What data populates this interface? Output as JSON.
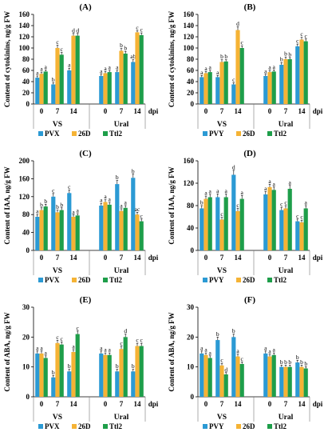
{
  "chart_data": [
    {
      "type": "bar",
      "panel_label": "(A)",
      "ylabel": "Content of cytokinins, ng/g FW",
      "xlabel": "dpi",
      "ylim": [
        0,
        160
      ],
      "yticks": [
        0,
        20,
        40,
        60,
        80,
        100,
        120,
        140,
        160
      ],
      "grid": false,
      "legend": "bottom",
      "groups": [
        {
          "name": "VS",
          "categories": [
            "0",
            "7",
            "14"
          ]
        },
        {
          "name": "Ural",
          "categories": [
            "0",
            "7",
            "14"
          ]
        }
      ],
      "series": [
        {
          "name": "PVX",
          "color": "#2b9ad4",
          "values": [
            47,
            35,
            60,
            50,
            57,
            75
          ],
          "errors": [
            3,
            3,
            4,
            3,
            3,
            4
          ],
          "letters": [
            "a",
            "b",
            "a",
            "a",
            "a",
            "ab"
          ]
        },
        {
          "name": "26D",
          "color": "#f5b335",
          "values": [
            54,
            100,
            122,
            55,
            95,
            128
          ],
          "errors": [
            3,
            5,
            4,
            3,
            4,
            3
          ],
          "letters": [
            "a",
            "c",
            "d",
            "a",
            "b",
            "c"
          ]
        },
        {
          "name": "Ttl2",
          "color": "#1e9e4a",
          "values": [
            58,
            88,
            122,
            57,
            90,
            123
          ],
          "errors": [
            3,
            4,
            4,
            3,
            4,
            4
          ],
          "letters": [
            "a",
            "c",
            "d",
            "a",
            "b",
            "c"
          ]
        }
      ]
    },
    {
      "type": "bar",
      "panel_label": "(B)",
      "ylabel": "Content of cytokinins, ng/g FW",
      "xlabel": "dpi",
      "ylim": [
        0,
        160
      ],
      "yticks": [
        0,
        20,
        40,
        60,
        80,
        100,
        120,
        140,
        160
      ],
      "grid": false,
      "legend": "bottom",
      "groups": [
        {
          "name": "VS",
          "categories": [
            "0",
            "7",
            "14"
          ]
        },
        {
          "name": "Ural",
          "categories": [
            "0",
            "7",
            "14"
          ]
        }
      ],
      "series": [
        {
          "name": "PVY",
          "color": "#2b9ad4",
          "values": [
            48,
            48,
            35,
            50,
            70,
            103
          ],
          "errors": [
            3,
            3,
            3,
            3,
            4,
            4
          ],
          "letters": [
            "a",
            "a",
            "c",
            "a",
            "b",
            "c"
          ]
        },
        {
          "name": "26D",
          "color": "#f5b335",
          "values": [
            55,
            75,
            132,
            57,
            80,
            115
          ],
          "errors": [
            3,
            4,
            6,
            3,
            4,
            4
          ],
          "letters": [
            "a",
            "b",
            "d",
            "a",
            "b",
            "c"
          ]
        },
        {
          "name": "Ttl2",
          "color": "#1e9e4a",
          "values": [
            57,
            76,
            100,
            58,
            80,
            112
          ],
          "errors": [
            3,
            3,
            4,
            3,
            3,
            4
          ],
          "letters": [
            "a",
            "b",
            "c",
            "a",
            "b",
            "c"
          ]
        }
      ]
    },
    {
      "type": "bar",
      "panel_label": "(C)",
      "ylabel": "Content of IAA, ng/g FW",
      "xlabel": "dpi",
      "ylim": [
        0,
        200
      ],
      "yticks": [
        0,
        40,
        80,
        120,
        160,
        200
      ],
      "grid": false,
      "legend": "bottom",
      "groups": [
        {
          "name": "VS",
          "categories": [
            "0",
            "7",
            "14"
          ]
        },
        {
          "name": "Ural",
          "categories": [
            "0",
            "7",
            "14"
          ]
        }
      ],
      "series": [
        {
          "name": "PVX",
          "color": "#2b9ad4",
          "values": [
            75,
            120,
            128,
            100,
            148,
            162
          ],
          "errors": [
            5,
            7,
            7,
            5,
            8,
            8
          ],
          "letters": [
            "a",
            "c",
            "c",
            "a",
            "b",
            "b"
          ]
        },
        {
          "name": "26D",
          "color": "#f5b335",
          "values": [
            90,
            85,
            75,
            108,
            88,
            80
          ],
          "errors": [
            5,
            5,
            4,
            5,
            5,
            5
          ],
          "letters": [
            "b",
            "b",
            "a",
            "a",
            "a",
            "ac"
          ]
        },
        {
          "name": "Ttl2",
          "color": "#1e9e4a",
          "values": [
            98,
            90,
            78,
            102,
            95,
            65
          ],
          "errors": [
            5,
            5,
            4,
            5,
            5,
            5
          ],
          "letters": [
            "b",
            "b",
            "a",
            "a",
            "a",
            "c"
          ]
        }
      ]
    },
    {
      "type": "bar",
      "panel_label": "(D)",
      "ylabel": "Content of IAA, ng/g FW",
      "xlabel": "dpi",
      "ylim": [
        0,
        160
      ],
      "yticks": [
        0,
        40,
        80,
        120,
        160
      ],
      "grid": false,
      "legend": "bottom",
      "groups": [
        {
          "name": "VS",
          "categories": [
            "0",
            "7",
            "14"
          ]
        },
        {
          "name": "Ural",
          "categories": [
            "0",
            "7",
            "14"
          ]
        }
      ],
      "series": [
        {
          "name": "PVY",
          "color": "#2b9ad4",
          "values": [
            75,
            95,
            135,
            100,
            72,
            52
          ],
          "errors": [
            5,
            6,
            8,
            5,
            5,
            4
          ],
          "letters": [
            "b",
            "a",
            "d",
            "a",
            "c",
            "c"
          ]
        },
        {
          "name": "26D",
          "color": "#f5b335",
          "values": [
            92,
            55,
            70,
            113,
            75,
            50
          ],
          "errors": [
            5,
            4,
            5,
            5,
            5,
            4
          ],
          "letters": [
            "a",
            "c",
            "c",
            "a",
            "c",
            "c"
          ]
        },
        {
          "name": "Ttl2",
          "color": "#1e9e4a",
          "values": [
            95,
            95,
            92,
            108,
            110,
            75
          ],
          "errors": [
            5,
            6,
            6,
            5,
            6,
            5
          ],
          "letters": [
            "a",
            "a",
            "a",
            "a",
            "a",
            "a"
          ]
        }
      ]
    },
    {
      "type": "bar",
      "panel_label": "(E)",
      "ylabel": "Content of ABA, ng/g FW",
      "xlabel": "dpi",
      "ylim": [
        0,
        30
      ],
      "yticks": [
        0,
        10,
        20,
        30
      ],
      "grid": false,
      "legend": "bottom",
      "groups": [
        {
          "name": "VS",
          "categories": [
            "0",
            "7",
            "14"
          ]
        },
        {
          "name": "Ural",
          "categories": [
            "0",
            "7",
            "14"
          ]
        }
      ],
      "series": [
        {
          "name": "PVX",
          "color": "#2b9ad4",
          "values": [
            14.5,
            6.5,
            8.5,
            14.5,
            8.5,
            8.5
          ],
          "errors": [
            0.8,
            0.6,
            0.7,
            0.8,
            0.7,
            0.7
          ],
          "letters": [
            "a",
            "b",
            "b",
            "a",
            "b",
            "b"
          ]
        },
        {
          "name": "26D",
          "color": "#f5b335",
          "values": [
            14.5,
            18,
            15,
            14,
            16,
            17
          ],
          "errors": [
            0.8,
            0.9,
            0.8,
            0.7,
            0.9,
            0.9
          ],
          "letters": [
            "a",
            "c",
            "a",
            "a",
            "c",
            "c"
          ]
        },
        {
          "name": "Ttl2",
          "color": "#1e9e4a",
          "values": [
            13,
            17.5,
            21,
            14,
            20,
            17
          ],
          "errors": [
            0.7,
            0.9,
            1.0,
            0.7,
            1.0,
            0.9
          ],
          "letters": [
            "a",
            "c",
            "c",
            "a",
            "d",
            "c"
          ]
        }
      ]
    },
    {
      "type": "bar",
      "panel_label": "(F)",
      "ylabel": "Content of ABA, ng/g FW",
      "xlabel": "dpi",
      "ylim": [
        0,
        30
      ],
      "yticks": [
        0,
        10,
        20,
        30
      ],
      "grid": false,
      "legend": "bottom",
      "groups": [
        {
          "name": "VS",
          "categories": [
            "0",
            "7",
            "14"
          ]
        },
        {
          "name": "Ural",
          "categories": [
            "0",
            "7",
            "14"
          ]
        }
      ],
      "series": [
        {
          "name": "PVY",
          "color": "#2b9ad4",
          "values": [
            14.5,
            19,
            20,
            14.5,
            10,
            11.5
          ],
          "errors": [
            0.8,
            1.0,
            1.0,
            0.8,
            0.6,
            0.7
          ],
          "letters": [
            "a",
            "b",
            "b",
            "a",
            "b",
            "b"
          ]
        },
        {
          "name": "26D",
          "color": "#f5b335",
          "values": [
            14,
            10.5,
            13.5,
            13.5,
            10,
            10
          ],
          "errors": [
            0.7,
            0.7,
            0.8,
            0.7,
            0.6,
            0.6
          ],
          "letters": [
            "a",
            "c",
            "a",
            "a",
            "b",
            "b"
          ]
        },
        {
          "name": "Ttl2",
          "color": "#1e9e4a",
          "values": [
            13,
            7.5,
            11,
            14,
            10,
            9.5
          ],
          "errors": [
            0.7,
            0.6,
            0.7,
            0.7,
            0.6,
            0.6
          ],
          "letters": [
            "a",
            "d",
            "c",
            "a",
            "b",
            "b"
          ]
        }
      ]
    }
  ]
}
